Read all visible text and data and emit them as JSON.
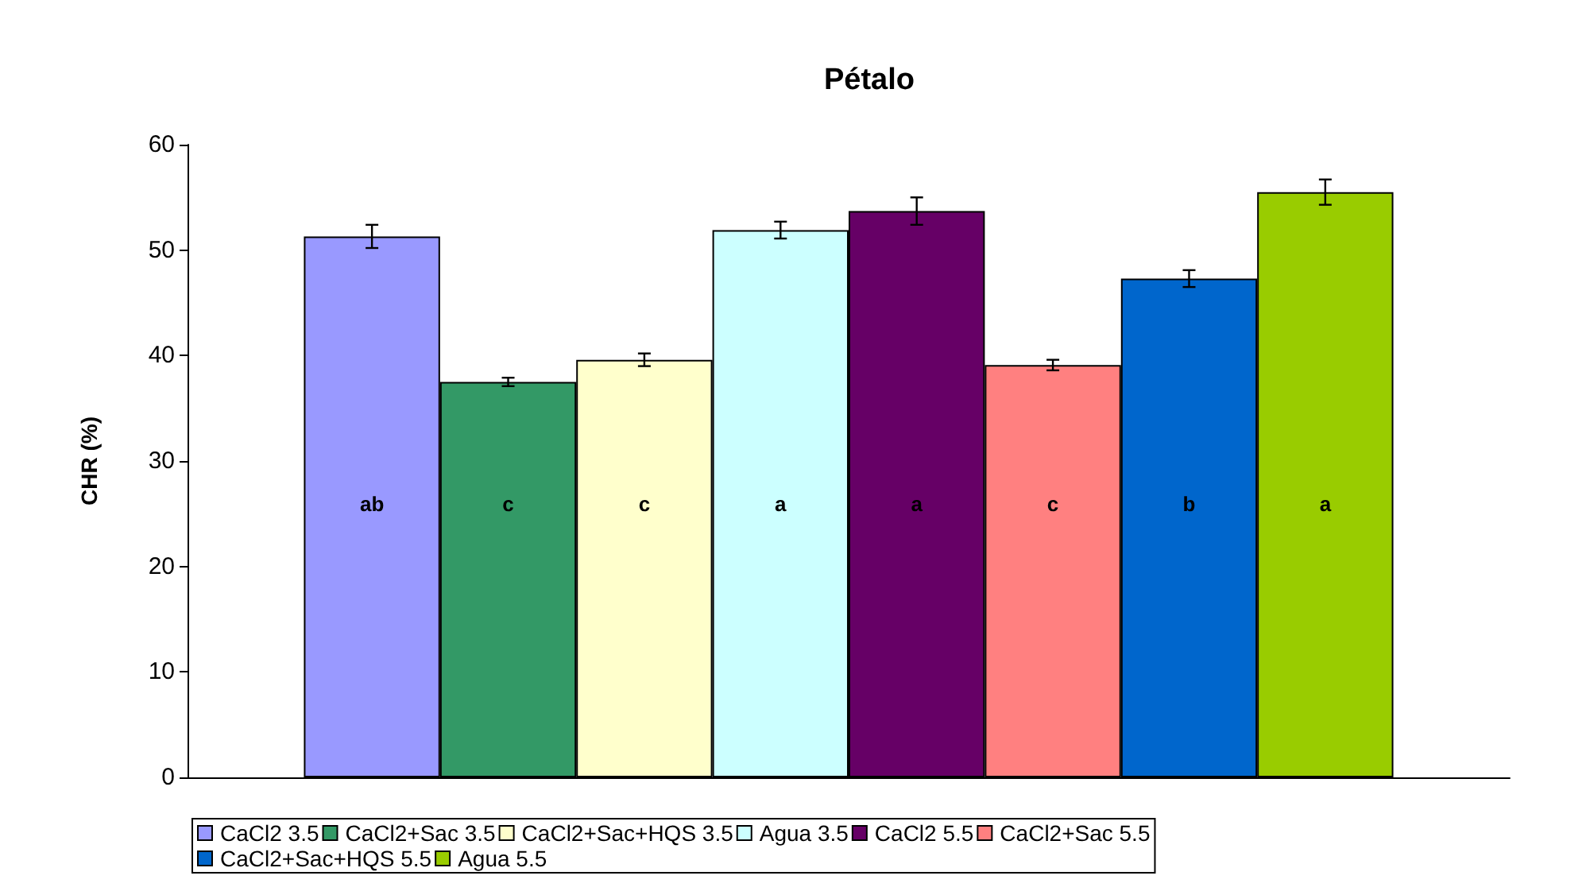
{
  "chart_data": {
    "type": "bar",
    "title": "Pétalo",
    "ylabel": "CHR (%)",
    "categories": [
      null
    ],
    "series": [
      {
        "name": "CaCl2 3.5",
        "color": "#9999ff",
        "values": [
          51.3
        ],
        "errors": [
          1.1
        ]
      },
      {
        "name": "CaCl2+Sac 3.5",
        "color": "#339966",
        "values": [
          37.5
        ],
        "errors": [
          0.4
        ]
      },
      {
        "name": "CaCl2+Sac+HQS 3.5",
        "color": "#ffffcc",
        "values": [
          39.6
        ],
        "errors": [
          0.6
        ]
      },
      {
        "name": "Agua 3.5",
        "color": "#ccffff",
        "values": [
          51.9
        ],
        "errors": [
          0.8
        ]
      },
      {
        "name": "CaCl2 5.5",
        "color": "#660066",
        "values": [
          53.7
        ],
        "errors": [
          1.3
        ]
      },
      {
        "name": "CaCl2+Sac 5.5",
        "color": "#ff8080",
        "values": [
          39.1
        ],
        "errors": [
          0.5
        ]
      },
      {
        "name": "CaCl2+Sac+HQS 5.5",
        "color": "#0066cc",
        "values": [
          47.3
        ],
        "errors": [
          0.8
        ]
      },
      {
        "name": "Agua 5.5",
        "color": "#99cc00",
        "values": [
          55.5
        ],
        "errors": [
          1.2
        ]
      }
    ],
    "annotations": [
      "ab",
      "c",
      "c",
      "a",
      "a",
      "c",
      "b",
      "a"
    ],
    "ylim": [
      0,
      60
    ],
    "yticks": [
      0,
      10,
      20,
      30,
      40,
      50,
      60
    ],
    "grid": false,
    "legend": "bottom"
  }
}
